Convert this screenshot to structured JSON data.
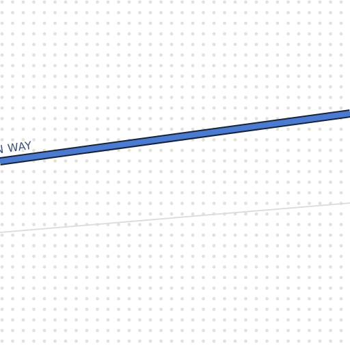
{
  "map": {
    "colors": {
      "background": "#ffffff",
      "dot_pattern": "#e2e2d8",
      "major_road_fill": "#4a7bd0",
      "major_road_casing": "#16213a",
      "minor_road": "#dddddd",
      "label_text": "#3a4f78",
      "label_halo": "#ffffff"
    },
    "roads": {
      "major": {
        "label": "N WAY"
      }
    }
  }
}
